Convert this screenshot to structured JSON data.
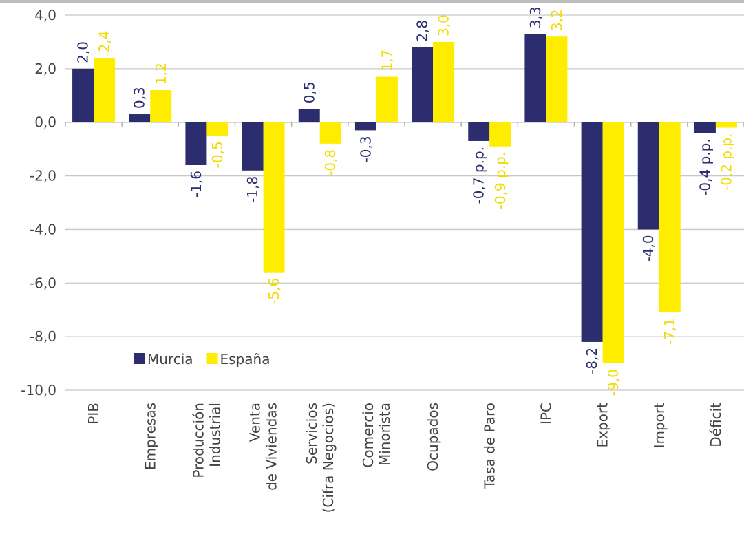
{
  "chart_data": {
    "type": "bar",
    "categories": [
      "PIB",
      "Empresas",
      "Producción\nIndustrial",
      "Venta\nde Viviendas",
      "Servicios\n(Cifra Negocios)",
      "Comercio\nMinorista",
      "Ocupados",
      "Tasa de Paro",
      "IPC",
      "Export",
      "Import",
      "Déficit"
    ],
    "series": [
      {
        "name": "Murcia",
        "color": "#2b2d6e",
        "values": [
          2.0,
          0.3,
          -1.6,
          -1.8,
          0.5,
          -0.3,
          2.8,
          -0.7,
          3.3,
          -8.2,
          -4.0,
          -0.4
        ],
        "value_labels": [
          "2,0",
          "0,3",
          "-1,6",
          "-1,8",
          "0,5",
          "-0,3",
          "2,8",
          "-0,7 p.p.",
          "3,3",
          "-8,2",
          "-4,0",
          "-0,4 p.p."
        ]
      },
      {
        "name": "España",
        "color": "#ffed00",
        "values": [
          2.4,
          1.2,
          -0.5,
          -5.6,
          -0.8,
          1.7,
          3.0,
          -0.9,
          3.2,
          -9.0,
          -7.1,
          -0.2
        ],
        "value_labels": [
          "2,4",
          "1,2",
          "-0,5",
          "-5,6",
          "-0,8",
          "1,7",
          "3,0",
          "-0,9 p.p.",
          "3,2",
          "-9,0",
          "-7,1",
          "-0,2 p.p."
        ]
      }
    ],
    "ylim": [
      -10,
      4
    ],
    "yticks": [
      {
        "value": -10,
        "label": "-10,0"
      },
      {
        "value": -8,
        "label": "-8,0"
      },
      {
        "value": -6,
        "label": "-6,0"
      },
      {
        "value": -4,
        "label": "-4,0"
      },
      {
        "value": -2,
        "label": "-2,0"
      },
      {
        "value": 0,
        "label": "0,0"
      },
      {
        "value": 2,
        "label": "2,0"
      },
      {
        "value": 4,
        "label": "4,0"
      }
    ],
    "grid": true,
    "legend": "lower left"
  }
}
